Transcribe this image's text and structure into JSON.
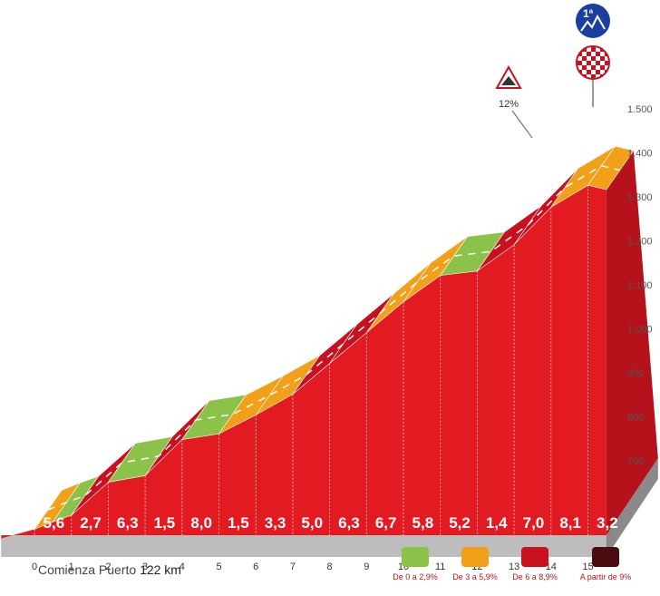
{
  "chart_data": {
    "type": "area",
    "title": "",
    "xlabel": "",
    "ylabel": "",
    "x_ticks": [
      "0",
      "1",
      "2",
      "3",
      "4",
      "5",
      "6",
      "7",
      "8",
      "9",
      "10",
      "11",
      "12",
      "13",
      "14",
      "15"
    ],
    "y_ticks": [
      "700",
      "800",
      "900",
      "1.000",
      "1.100",
      "1.200",
      "1.300",
      "1.400",
      "1.500"
    ],
    "ylim": [
      700,
      1500
    ],
    "xlim": [
      0,
      15.5
    ],
    "km_gradients": [
      5.6,
      2.7,
      6.3,
      1.5,
      8.0,
      1.5,
      3.3,
      5.0,
      6.3,
      6.7,
      5.8,
      5.2,
      1.4,
      7.0,
      8.1,
      3.2
    ],
    "km_labels": [
      "5,6",
      "2,7",
      "6,3",
      "1,5",
      "8,0",
      "1,5",
      "3,3",
      "5,0",
      "6,3",
      "6,7",
      "5,8",
      "5,2",
      "1,4",
      "7,0",
      "8,1",
      "3,2"
    ],
    "profile": {
      "km": [
        0,
        0.5,
        1,
        2,
        3,
        4,
        5,
        6,
        7,
        8,
        9,
        10,
        11,
        12,
        13,
        14,
        15,
        15.5
      ],
      "altitude": [
        633,
        650,
        665,
        740,
        755,
        837,
        850,
        893,
        940,
        1010,
        1080,
        1150,
        1210,
        1220,
        1280,
        1365,
        1415,
        1405
      ],
      "segment_colors": [
        "#f2a01a",
        "#8bc34a",
        "#c8101e",
        "#8bc34a",
        "#c8101e",
        "#8bc34a",
        "#f2a01a",
        "#f2a01a",
        "#c8101e",
        "#c8101e",
        "#f2a01a",
        "#f2a01a",
        "#8bc34a",
        "#c8101e",
        "#c8101e",
        "#f2a01a",
        "#f2a01a"
      ]
    },
    "annotations": [
      {
        "label": "12%",
        "km": 14
      }
    ]
  },
  "colors": {
    "green": "#8bc34a",
    "orange": "#f2a01a",
    "red": "#c8101e",
    "darkred": "#4a0c0e",
    "body": "#e21b23"
  },
  "footer": {
    "text": "Comienza Puerto",
    "km": "122 km"
  },
  "legend": [
    {
      "label": "De 0 a 2,9%",
      "color": "#8bc34a"
    },
    {
      "label": "De 3 a 5,9%",
      "color": "#f2a01a"
    },
    {
      "label": "De 6 a 8,9%",
      "color": "#c8101e"
    },
    {
      "label": "A partir de 9%",
      "color": "#4a0c0e"
    }
  ],
  "badges": {
    "category": "1ª",
    "finish": "finish-flag-icon"
  }
}
